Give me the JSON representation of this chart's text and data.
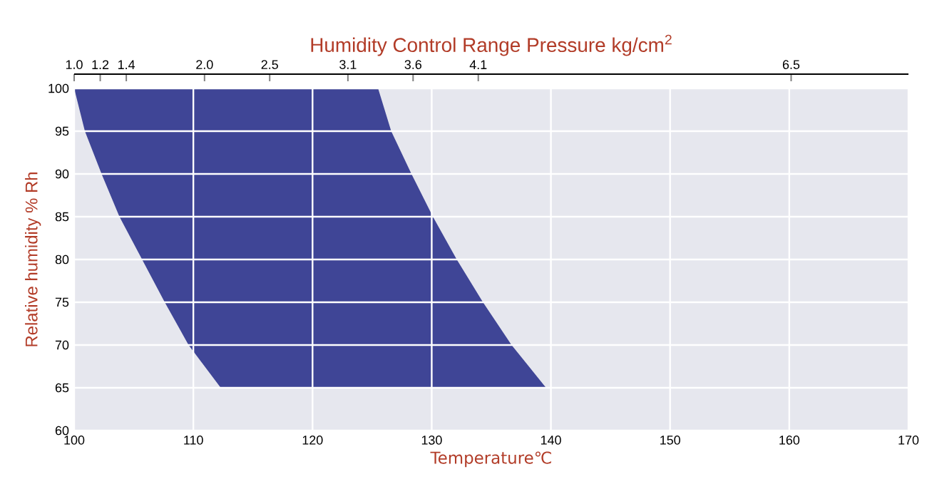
{
  "chart_data": {
    "type": "area",
    "x2label": "Humidity Control Range Pressure kg/cm$^{2}$",
    "xlabel": "Temperature℃",
    "ylabel": "Relative humidity % Rh",
    "series": [
      {
        "color": "#3f4596",
        "x": [
          100,
          100.9,
          102.3,
          103.8,
          105.7,
          107.6,
          109.6,
          112.3,
          139.6,
          136.7,
          134.3,
          132.1,
          130.1,
          128.3,
          126.6,
          125.5
        ],
        "values": [
          100,
          95,
          90,
          85,
          80,
          75,
          70,
          65,
          65,
          70,
          75,
          80,
          85,
          90,
          95,
          100
        ]
      }
    ],
    "xlim": [
      100,
      170
    ],
    "ylim": [
      60,
      100
    ],
    "xticks": [
      100,
      110,
      120,
      130,
      140,
      150,
      160,
      170
    ],
    "yticks": [
      60,
      65,
      70,
      75,
      80,
      85,
      90,
      95,
      100
    ],
    "x2lim": [
      1.0,
      7.4
    ],
    "x2ticks": [
      {
        "value": 1.0,
        "label": "1.0"
      },
      {
        "value": 1.2,
        "label": "1.2"
      },
      {
        "value": 1.4,
        "label": "1.4"
      },
      {
        "value": 2.0,
        "label": "2.0"
      },
      {
        "value": 2.5,
        "label": "2.5"
      },
      {
        "value": 3.1,
        "label": "3.1"
      },
      {
        "value": 3.6,
        "label": "3.6"
      },
      {
        "value": 4.1,
        "label": "4.1"
      },
      {
        "value": 6.5,
        "label": "6.5"
      }
    ],
    "grid": true
  }
}
